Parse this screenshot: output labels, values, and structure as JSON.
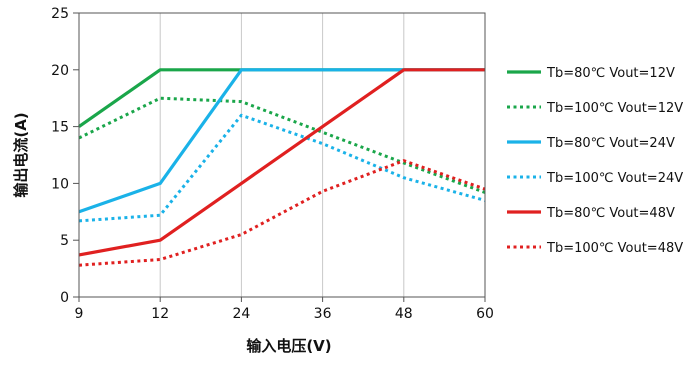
{
  "chart_data": {
    "type": "line",
    "title": "",
    "xlabel": "输入电压(V)",
    "ylabel": "输出电流(A)",
    "categories": [
      "9",
      "12",
      "24",
      "36",
      "48",
      "60"
    ],
    "ylim": [
      0,
      25
    ],
    "yticks": [
      "0",
      "5",
      "10",
      "15",
      "20",
      "25"
    ],
    "grid": "vertical",
    "legend_position": "right",
    "series": [
      {
        "name": "Tb=80℃ Vout=12V",
        "color": "#1aa64a",
        "dash": "solid",
        "values": [
          15,
          20,
          20,
          20,
          20,
          20
        ]
      },
      {
        "name": "Tb=100℃ Vout=12V",
        "color": "#1aa64a",
        "dash": "dotted",
        "values": [
          14,
          17.5,
          17.2,
          14.5,
          11.8,
          9.2
        ]
      },
      {
        "name": "Tb=80℃ Vout=24V",
        "color": "#1ab2e8",
        "dash": "solid",
        "values": [
          7.5,
          10,
          20,
          20,
          20,
          20
        ]
      },
      {
        "name": "Tb=100℃ Vout=24V",
        "color": "#1ab2e8",
        "dash": "dotted",
        "values": [
          6.7,
          7.2,
          16,
          13.5,
          10.5,
          8.5
        ]
      },
      {
        "name": "Tb=80℃ Vout=48V",
        "color": "#e02020",
        "dash": "solid",
        "values": [
          3.7,
          5,
          10,
          15,
          20,
          20
        ]
      },
      {
        "name": "Tb=100℃ Vout=48V",
        "color": "#e02020",
        "dash": "dotted",
        "values": [
          2.8,
          3.3,
          5.5,
          9.3,
          12,
          9.5
        ]
      }
    ]
  }
}
